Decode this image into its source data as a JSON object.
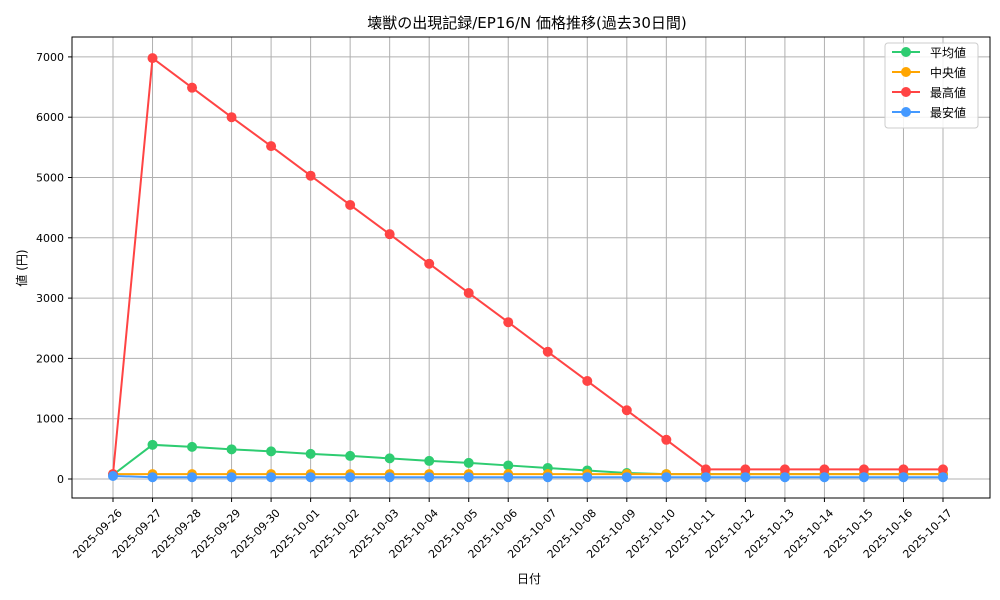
{
  "chart_data": {
    "type": "line",
    "title": "壊獣の出現記録/EP16/N 価格推移(過去30日間)",
    "xlabel": "日付",
    "ylabel": "値 (円)",
    "ylim": [
      -315,
      7330
    ],
    "yticks": [
      0,
      1000,
      2000,
      3000,
      4000,
      5000,
      6000,
      7000
    ],
    "grid": true,
    "legend_position": "top-right",
    "x": [
      "2025-09-26",
      "2025-09-27",
      "2025-09-28",
      "2025-09-29",
      "2025-09-30",
      "2025-10-01",
      "2025-10-02",
      "2025-10-03",
      "2025-10-04",
      "2025-10-05",
      "2025-10-06",
      "2025-10-07",
      "2025-10-08",
      "2025-10-09",
      "2025-10-10",
      "2025-10-11",
      "2025-10-12",
      "2025-10-13",
      "2025-10-14",
      "2025-10-15",
      "2025-10-16",
      "2025-10-17"
    ],
    "series": [
      {
        "name": "平均値",
        "color": "#2ecc71",
        "values": [
          70,
          567,
          533,
          492,
          458,
          417,
          383,
          342,
          300,
          267,
          225,
          183,
          142,
          100,
          80,
          80,
          80,
          80,
          80,
          80,
          80,
          80
        ]
      },
      {
        "name": "中央値",
        "color": "#ffa500",
        "values": [
          80,
          80,
          80,
          80,
          80,
          80,
          80,
          80,
          80,
          80,
          80,
          80,
          80,
          80,
          80,
          80,
          80,
          80,
          80,
          80,
          80,
          80
        ]
      },
      {
        "name": "最高値",
        "color": "#ff4444",
        "values": [
          80,
          6980,
          6490,
          6000,
          5520,
          5030,
          4545,
          4060,
          3570,
          3085,
          2600,
          2110,
          1625,
          1140,
          650,
          160,
          160,
          160,
          160,
          160,
          160,
          160
        ]
      },
      {
        "name": "最安値",
        "color": "#4499ff",
        "values": [
          50,
          30,
          30,
          30,
          30,
          30,
          30,
          30,
          30,
          30,
          30,
          30,
          30,
          30,
          30,
          30,
          30,
          30,
          30,
          30,
          30,
          30
        ]
      }
    ]
  }
}
